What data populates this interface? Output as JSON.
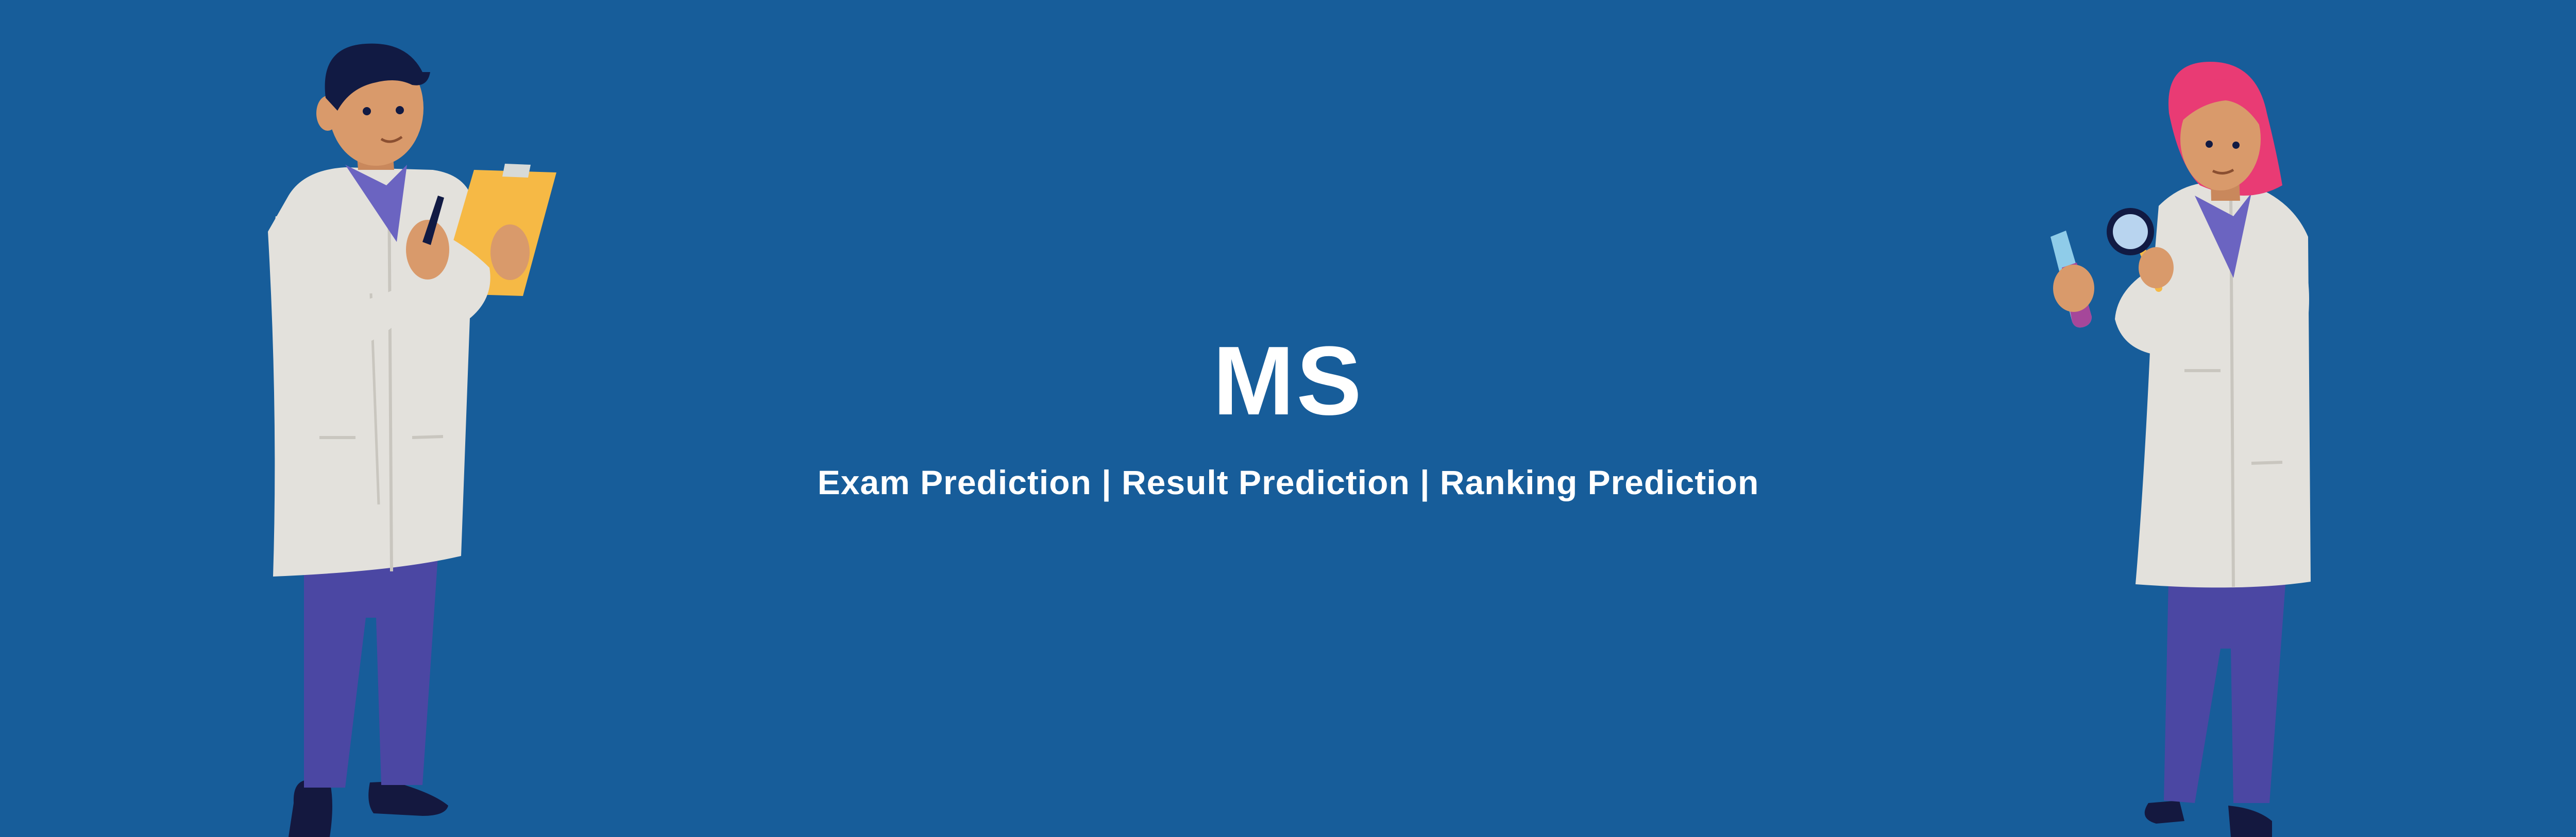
{
  "banner": {
    "title": "MS",
    "subtitle": "Exam Prediction | Result Prediction | Ranking Prediction",
    "background_color": "#175d9a",
    "text_color": "#ffffff"
  },
  "illustrations": {
    "left": {
      "icon": "scientist-with-clipboard-icon"
    },
    "right": {
      "icon": "scientist-with-magnifier-and-test-tube-icon"
    }
  }
}
